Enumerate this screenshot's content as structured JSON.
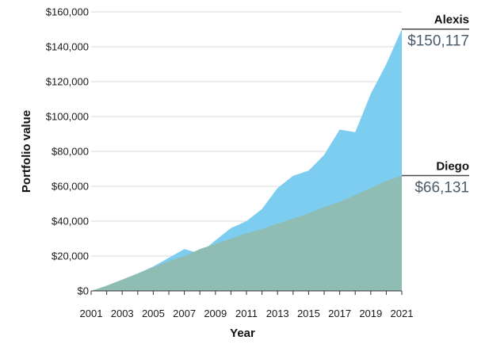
{
  "chart_data": {
    "type": "area",
    "xlabel": "Year",
    "ylabel": "Portfolio value",
    "ylim": [
      0,
      160000
    ],
    "xlim": [
      2001,
      2021
    ],
    "grid": true,
    "y_ticks": [
      0,
      20000,
      40000,
      60000,
      80000,
      100000,
      120000,
      140000,
      160000
    ],
    "y_tick_labels": [
      "$0",
      "$20,000",
      "$40,000",
      "$60,000",
      "$80,000",
      "$100,000",
      "$120,000",
      "$140,000",
      "$160,000"
    ],
    "x_tick_labels": [
      "2001",
      "2003",
      "2005",
      "2007",
      "2009",
      "2011",
      "2013",
      "2015",
      "2017",
      "2019",
      "2021"
    ],
    "x": [
      2001,
      2002,
      2003,
      2004,
      2005,
      2006,
      2007,
      2008,
      2009,
      2010,
      2011,
      2012,
      2013,
      2014,
      2015,
      2016,
      2017,
      2018,
      2019,
      2020,
      2021
    ],
    "series": [
      {
        "name": "Alexis",
        "color": "#7dcdf0",
        "values": [
          0,
          2500,
          6000,
          10000,
          14000,
          19000,
          24000,
          21500,
          29000,
          36000,
          40000,
          47000,
          59000,
          66000,
          69000,
          78000,
          92500,
          91000,
          113000,
          130000,
          150117
        ],
        "end_label": "$150,117"
      },
      {
        "name": "Diego",
        "color": "#8fbdb4",
        "values": [
          0,
          3000,
          6500,
          10000,
          13500,
          17000,
          20000,
          24000,
          27000,
          30000,
          33000,
          35500,
          38500,
          41500,
          44500,
          48000,
          51000,
          55000,
          59000,
          63000,
          66131
        ],
        "end_label": "$66,131"
      }
    ]
  }
}
